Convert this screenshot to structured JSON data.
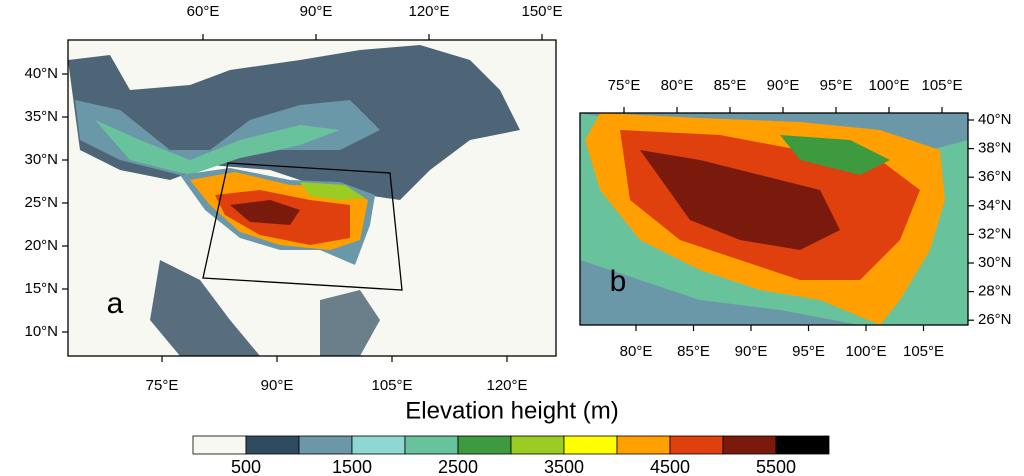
{
  "panel_a": {
    "label": "a",
    "top_ticks": [
      "60°E",
      "90°E",
      "120°E",
      "150°E"
    ],
    "bottom_ticks": [
      "75°E",
      "90°E",
      "105°E",
      "120°E"
    ],
    "left_ticks": [
      "40°N",
      "35°N",
      "30°N",
      "25°N",
      "20°N",
      "15°N",
      "10°N"
    ]
  },
  "panel_b": {
    "label": "b",
    "top_ticks": [
      "75°E",
      "80°E",
      "85°E",
      "90°E",
      "95°E",
      "100°E",
      "105°E"
    ],
    "bottom_ticks": [
      "80°E",
      "85°E",
      "90°E",
      "95°E",
      "100°E",
      "105°E"
    ],
    "right_ticks": [
      "40°N",
      "38°N",
      "36°N",
      "34°N",
      "32°N",
      "30°N",
      "28°N",
      "26°N"
    ]
  },
  "colorbar": {
    "title": "Elevation height (m)",
    "colors": [
      "#f8f8f2",
      "#2f4b60",
      "#6b98a8",
      "#8fd8d2",
      "#68c29c",
      "#3d9a3e",
      "#9acc24",
      "#ffff00",
      "#ffa000",
      "#e0400e",
      "#7a1a0c",
      "#000000"
    ],
    "labels": [
      "500",
      "1500",
      "2500",
      "3500",
      "4500",
      "5500"
    ]
  }
}
